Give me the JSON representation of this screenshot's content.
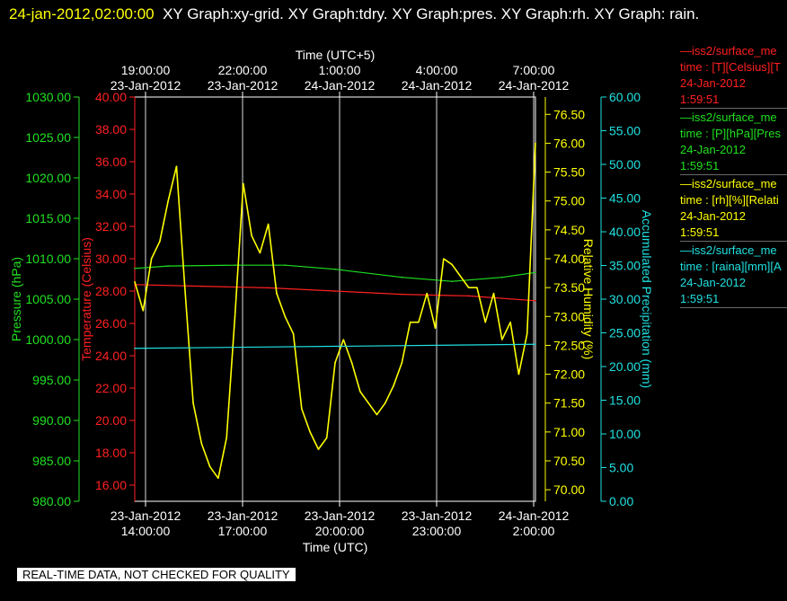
{
  "header": {
    "timestamp": "24-jan-2012,02:00:00",
    "graph_list": "XY Graph:xy-grid.  XY Graph:tdry.  XY Graph:pres.  XY Graph:rh.  XY Graph: rain."
  },
  "footer": {
    "note": "REAL-TIME DATA, NOT CHECKED FOR QUALITY"
  },
  "legend": [
    {
      "line1": "iss2/surface_me",
      "line2": "time : [T][Celsius][T",
      "line3": "24-Jan-2012",
      "line4": "1:59:51",
      "color": "#ff2020"
    },
    {
      "line1": "iss2/surface_me",
      "line2": "time : [P][hPa][Pres",
      "line3": "24-Jan-2012",
      "line4": "1:59:51",
      "color": "#20e020"
    },
    {
      "line1": "iss2/surface_me",
      "line2": "time : [rh][%][Relati",
      "line3": "24-Jan-2012",
      "line4": "1:59:51",
      "color": "#ffff00"
    },
    {
      "line1": "iss2/surface_me",
      "line2": "time : [raina][mm][A",
      "line3": "24-Jan-2012",
      "line4": "1:59:51",
      "color": "#20e0e0"
    }
  ],
  "chart_data": {
    "type": "line",
    "grid": true,
    "xlabel_bottom": "Time (UTC)",
    "xlabel_top": "Time (UTC+5)",
    "x_ticks_bottom": [
      {
        "date": "23-Jan-2012",
        "time": "14:00:00"
      },
      {
        "date": "23-Jan-2012",
        "time": "17:00:00"
      },
      {
        "date": "23-Jan-2012",
        "time": "20:00:00"
      },
      {
        "date": "23-Jan-2012",
        "time": "23:00:00"
      },
      {
        "date": "24-Jan-2012",
        "time": "2:00:00"
      }
    ],
    "x_ticks_top": [
      {
        "time": "19:00:00",
        "date": "23-Jan-2012"
      },
      {
        "time": "22:00:00",
        "date": "23-Jan-2012"
      },
      {
        "time": "1:00:00",
        "date": "24-Jan-2012"
      },
      {
        "time": "4:00:00",
        "date": "24-Jan-2012"
      },
      {
        "time": "7:00:00",
        "date": "24-Jan-2012"
      }
    ],
    "xlim_hours_utc": [
      "23-Jan-2012 14:00",
      "24-Jan-2012 02:00"
    ],
    "axes": {
      "pressure": {
        "label": "Pressure (hPa)",
        "color": "#20e020",
        "ylim": [
          980,
          1030
        ],
        "ticks": [
          "980.00",
          "985.00",
          "990.00",
          "995.00",
          "1000.00",
          "1005.00",
          "1010.00",
          "1015.00",
          "1020.00",
          "1025.00",
          "1030.00"
        ]
      },
      "temperature": {
        "label": "Temperature (Celsius)",
        "color": "#ff2020",
        "ylim": [
          15,
          40
        ],
        "ticks": [
          "16.00",
          "18.00",
          "20.00",
          "22.00",
          "24.00",
          "26.00",
          "28.00",
          "30.00",
          "32.00",
          "34.00",
          "36.00",
          "38.00",
          "40.00"
        ]
      },
      "humidity": {
        "label": "Relative Humidity (%)",
        "color": "#ffff00",
        "ylim": [
          69.8,
          76.8
        ],
        "ticks": [
          "70.00",
          "70.50",
          "71.00",
          "71.50",
          "72.00",
          "72.50",
          "73.00",
          "73.50",
          "74.00",
          "74.50",
          "75.00",
          "75.50",
          "76.00",
          "76.50"
        ]
      },
      "precip": {
        "label": "Accumulated Precipitation (mm)",
        "color": "#20e0e0",
        "ylim": [
          0,
          60
        ],
        "ticks": [
          "0.00",
          "5.00",
          "10.00",
          "15.00",
          "20.00",
          "25.00",
          "30.00",
          "35.00",
          "40.00",
          "45.00",
          "50.00",
          "55.00",
          "60.00"
        ]
      }
    },
    "series": [
      {
        "name": "Temperature",
        "axis": "temperature",
        "color": "#ff2020",
        "x": [
          "23-Jan-2012 14:00",
          "23-Jan-2012 16:00",
          "23-Jan-2012 18:00",
          "23-Jan-2012 20:00",
          "23-Jan-2012 22:00",
          "24-Jan-2012 00:00",
          "24-Jan-2012 02:00"
        ],
        "y": [
          28.4,
          28.3,
          28.2,
          28.0,
          27.8,
          27.7,
          27.4
        ]
      },
      {
        "name": "Pressure",
        "axis": "pressure",
        "color": "#20e020",
        "x": [
          "23-Jan-2012 14:00",
          "23-Jan-2012 15:00",
          "23-Jan-2012 17:00",
          "23-Jan-2012 18:30",
          "23-Jan-2012 20:00",
          "23-Jan-2012 22:00",
          "23-Jan-2012 23:30",
          "24-Jan-2012 01:00",
          "24-Jan-2012 02:00"
        ],
        "y": [
          1008.8,
          1009.1,
          1009.2,
          1009.2,
          1008.7,
          1007.7,
          1007.2,
          1007.7,
          1008.3
        ]
      },
      {
        "name": "Relative Humidity",
        "axis": "humidity",
        "color": "#ffff00",
        "x": [
          "23-Jan-2012 14:00",
          "23-Jan-2012 14:15",
          "23-Jan-2012 14:30",
          "23-Jan-2012 14:45",
          "23-Jan-2012 15:00",
          "23-Jan-2012 15:15",
          "23-Jan-2012 15:30",
          "23-Jan-2012 15:45",
          "23-Jan-2012 16:00",
          "23-Jan-2012 16:15",
          "23-Jan-2012 16:30",
          "23-Jan-2012 16:45",
          "23-Jan-2012 17:00",
          "23-Jan-2012 17:15",
          "23-Jan-2012 17:30",
          "23-Jan-2012 17:45",
          "23-Jan-2012 18:00",
          "23-Jan-2012 18:15",
          "23-Jan-2012 18:30",
          "23-Jan-2012 18:45",
          "23-Jan-2012 19:00",
          "23-Jan-2012 19:15",
          "23-Jan-2012 19:30",
          "23-Jan-2012 19:45",
          "23-Jan-2012 20:00",
          "23-Jan-2012 20:15",
          "23-Jan-2012 20:30",
          "23-Jan-2012 20:45",
          "23-Jan-2012 21:00",
          "23-Jan-2012 21:15",
          "23-Jan-2012 21:30",
          "23-Jan-2012 21:45",
          "23-Jan-2012 22:00",
          "23-Jan-2012 22:15",
          "23-Jan-2012 22:30",
          "23-Jan-2012 22:45",
          "23-Jan-2012 23:00",
          "23-Jan-2012 23:15",
          "23-Jan-2012 23:30",
          "23-Jan-2012 23:45",
          "24-Jan-2012 00:00",
          "24-Jan-2012 00:15",
          "24-Jan-2012 00:30",
          "24-Jan-2012 00:45",
          "24-Jan-2012 01:00",
          "24-Jan-2012 01:15",
          "24-Jan-2012 01:30",
          "24-Jan-2012 01:45",
          "24-Jan-2012 02:00"
        ],
        "y": [
          73.6,
          73.1,
          74.0,
          74.3,
          75.0,
          75.6,
          73.5,
          71.5,
          70.8,
          70.4,
          70.2,
          70.9,
          73.0,
          75.3,
          74.4,
          74.1,
          74.6,
          73.4,
          73.0,
          72.7,
          71.4,
          71.0,
          70.7,
          70.9,
          72.2,
          72.6,
          72.2,
          71.7,
          71.5,
          71.3,
          71.5,
          71.8,
          72.2,
          72.9,
          72.9,
          73.4,
          72.8,
          74.0,
          73.9,
          73.7,
          73.5,
          73.5,
          72.9,
          73.4,
          72.6,
          72.9,
          72.0,
          72.7,
          76.0
        ]
      },
      {
        "name": "Accumulated Precipitation",
        "axis": "precip",
        "color": "#20e0e0",
        "x": [
          "23-Jan-2012 14:00",
          "24-Jan-2012 02:00"
        ],
        "y": [
          22.7,
          23.3
        ]
      }
    ]
  }
}
